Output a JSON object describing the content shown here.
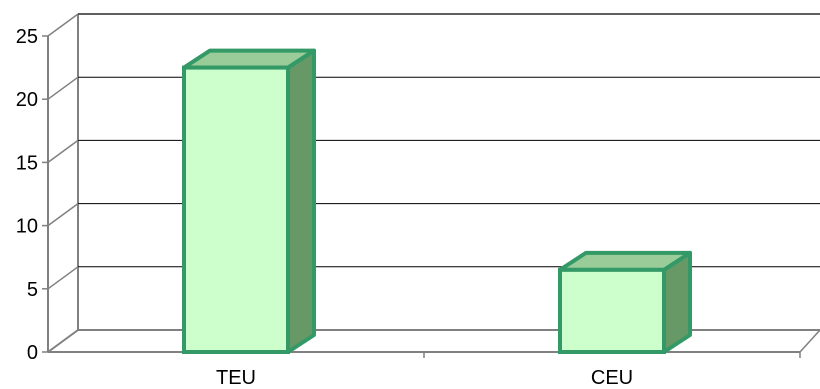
{
  "chart_data": {
    "type": "bar",
    "style": "3d-column",
    "categories": [
      "TEU",
      "CEU"
    ],
    "values": [
      22.5,
      6.5
    ],
    "ylim": [
      0,
      25
    ],
    "yticks": [
      0,
      5,
      10,
      15,
      20,
      25
    ],
    "ytick_labels": [
      "0",
      "5",
      "10",
      "15",
      "20",
      "25"
    ],
    "grid": true,
    "legend": "none",
    "colors": {
      "bar_front": "#ccffcc",
      "bar_top": "#99cc99",
      "bar_side": "#669966",
      "bar_edge": "#339966",
      "grid": "#000000",
      "wall": "#808080"
    }
  }
}
